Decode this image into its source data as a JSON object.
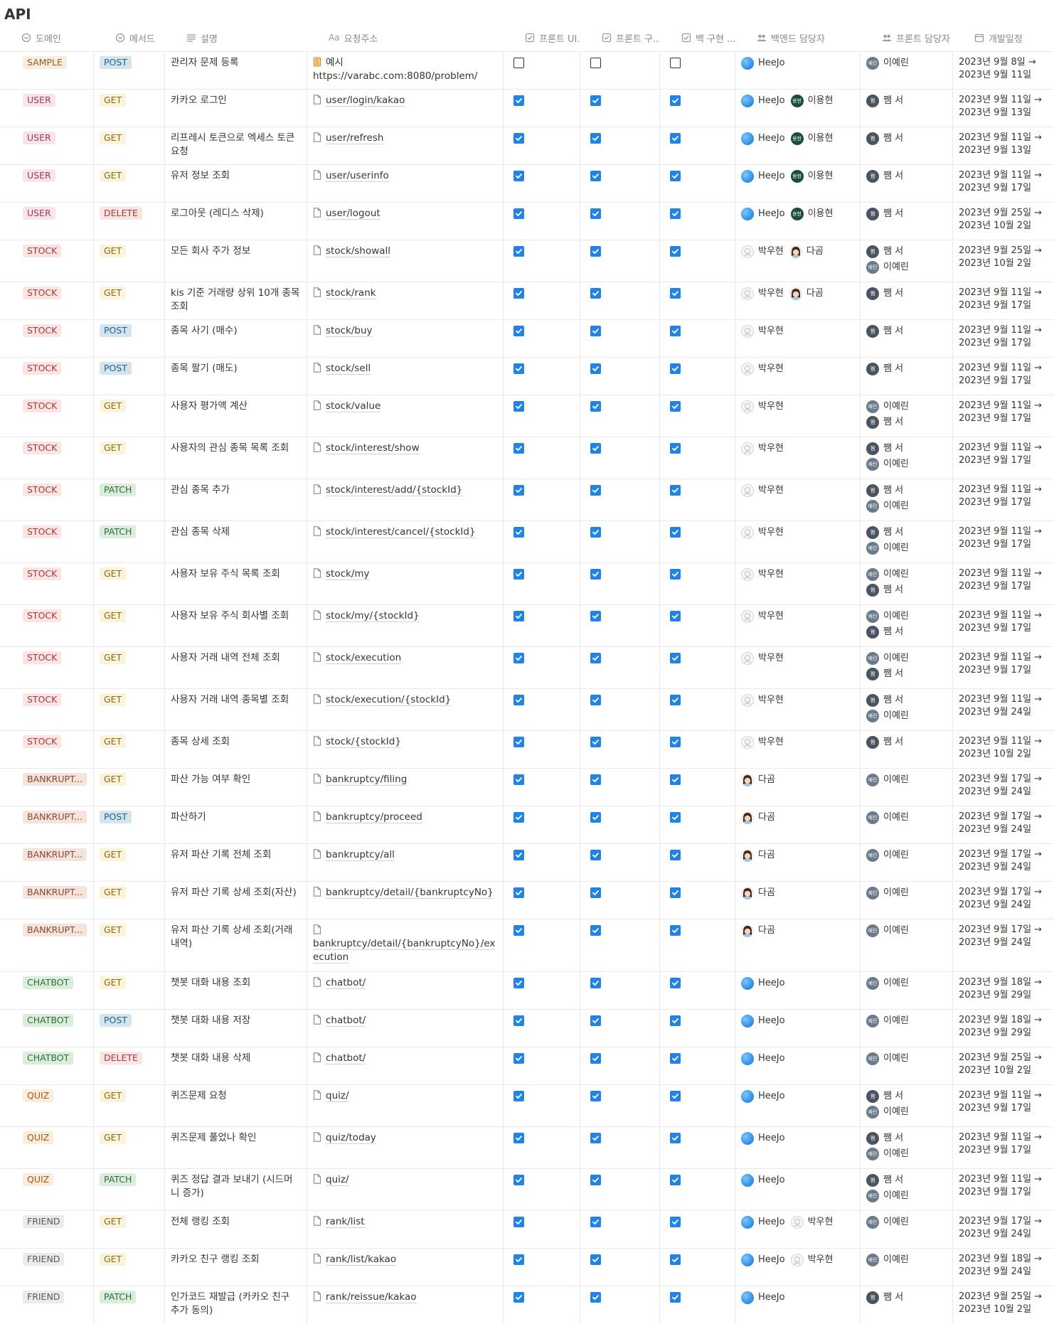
{
  "page": {
    "title": "API"
  },
  "headers": [
    {
      "label": "도메인",
      "icon": "select-icon"
    },
    {
      "label": "메서드",
      "icon": "select-icon"
    },
    {
      "label": "설명",
      "icon": "text-lines-icon"
    },
    {
      "label": "요청주소",
      "icon": "title-aa-icon",
      "prefix": "Aa"
    },
    {
      "label": "프론트 UI...",
      "icon": "checkbox-icon"
    },
    {
      "label": "프론트 구...",
      "icon": "checkbox-icon"
    },
    {
      "label": "백 구현 ...",
      "icon": "checkbox-icon"
    },
    {
      "label": "백엔드 담당자",
      "icon": "people-icon"
    },
    {
      "label": "프론트 담당자",
      "icon": "people-icon"
    },
    {
      "label": "개발일정",
      "icon": "calendar-icon"
    }
  ],
  "people": {
    "HeeJo": {
      "initials": "",
      "color": "#1e88e5",
      "icon": "globe-avatar-icon"
    },
    "이용현": {
      "initials": "용현",
      "color": "#1b4d3e",
      "icon": "initials-avatar-icon"
    },
    "다곰": {
      "initials": "",
      "color": "#f3d9c6",
      "icon": "girl-avatar-icon"
    },
    "박우현": {
      "initials": "",
      "color": "#f1f1ef",
      "icon": "sketch-avatar-icon"
    },
    "이예린": {
      "initials": "예린",
      "color": "#6b7a8a",
      "icon": "initials-avatar-icon"
    },
    "쨈 서": {
      "initials": "쨈",
      "color": "#4a5560",
      "icon": "initials-avatar-icon"
    }
  },
  "tag_colors": {
    "SAMPLE": {
      "bg": "#fbecdd",
      "fg": "#89632a"
    },
    "USER": {
      "bg": "#f9e4ec",
      "fg": "#9b3b5a"
    },
    "STOCK": {
      "bg": "#fbe4e4",
      "fg": "#a73a3a"
    },
    "BANKRUPT...": {
      "bg": "#f4e4dc",
      "fg": "#8a4a33"
    },
    "CHATBOT": {
      "bg": "#dbeddb",
      "fg": "#2f6b3e"
    },
    "QUIZ": {
      "bg": "#fbecdd",
      "fg": "#a15c14"
    },
    "FRIEND": {
      "bg": "#ebebea",
      "fg": "#5a5955"
    },
    "POST": {
      "bg": "#d3e5ef",
      "fg": "#2a5f80"
    },
    "GET": {
      "bg": "#fbf3db",
      "fg": "#8a6a12"
    },
    "DELETE": {
      "bg": "#fbe4e4",
      "fg": "#a73a3a"
    },
    "PATCH": {
      "bg": "#dbeddb",
      "fg": "#2f6b3e"
    }
  },
  "rows": [
    {
      "domain": "SAMPLE",
      "method": "POST",
      "desc": "관리자 문제 등록",
      "url_prefix": "예시",
      "url": "https://varabc.com:8080/problem/",
      "ui": false,
      "fe": false,
      "be": false,
      "backend": [
        "HeeJo"
      ],
      "frontend": [
        "이예린"
      ],
      "date1": "2023년 9월 8일 →",
      "date2": "2023년 9월 11일"
    },
    {
      "domain": "USER",
      "method": "GET",
      "desc": "카카오 로그인",
      "url": "user/login/kakao",
      "ui": true,
      "fe": true,
      "be": true,
      "backend": [
        "HeeJo",
        "이용현"
      ],
      "frontend": [
        "쨈 서"
      ],
      "date1": "2023년 9월 11일 →",
      "date2": "2023년 9월 13일"
    },
    {
      "domain": "USER",
      "method": "GET",
      "desc": "리프레시 토큰으로 엑세스 토큰 요청",
      "url": "user/refresh",
      "ui": true,
      "fe": true,
      "be": true,
      "backend": [
        "HeeJo",
        "이용현"
      ],
      "frontend": [
        "쨈 서"
      ],
      "date1": "2023년 9월 11일 →",
      "date2": "2023년 9월 13일"
    },
    {
      "domain": "USER",
      "method": "GET",
      "desc": "유저 정보 조회",
      "url": "user/userinfo",
      "ui": true,
      "fe": true,
      "be": true,
      "backend": [
        "HeeJo",
        "이용현"
      ],
      "frontend": [
        "쨈 서"
      ],
      "date1": "2023년 9월 11일 →",
      "date2": "2023년 9월 17일"
    },
    {
      "domain": "USER",
      "method": "DELETE",
      "desc": "로그아웃 (레디스 삭제)",
      "url": "user/logout",
      "ui": true,
      "fe": true,
      "be": true,
      "backend": [
        "HeeJo",
        "이용현"
      ],
      "frontend": [
        "쨈 서"
      ],
      "date1": "2023년 9월 25일 →",
      "date2": "2023년 10월 2일"
    },
    {
      "domain": "STOCK",
      "method": "GET",
      "desc": "모든 회사 주가 정보",
      "url": "stock/showall",
      "ui": true,
      "fe": true,
      "be": true,
      "backend": [
        "박우현",
        "다곰"
      ],
      "frontend": [
        "쨈 서",
        "이예린"
      ],
      "date1": "2023년 9월 25일 →",
      "date2": "2023년 10월 2일"
    },
    {
      "domain": "STOCK",
      "method": "GET",
      "desc": "kis 기준 거래량 상위 10개 종목 조회",
      "url": "stock/rank",
      "ui": true,
      "fe": true,
      "be": true,
      "backend": [
        "박우현",
        "다곰"
      ],
      "frontend": [
        "쨈 서"
      ],
      "date1": "2023년 9월 11일 →",
      "date2": "2023년 9월 17일"
    },
    {
      "domain": "STOCK",
      "method": "POST",
      "desc": "종목 사기 (매수)",
      "url": "stock/buy",
      "ui": true,
      "fe": true,
      "be": true,
      "backend": [
        "박우현"
      ],
      "frontend": [
        "쨈 서"
      ],
      "date1": "2023년 9월 11일 →",
      "date2": "2023년 9월 17일"
    },
    {
      "domain": "STOCK",
      "method": "POST",
      "desc": "종목 팔기 (매도)",
      "url": "stock/sell",
      "ui": true,
      "fe": true,
      "be": true,
      "backend": [
        "박우현"
      ],
      "frontend": [
        "쨈 서"
      ],
      "date1": "2023년 9월 11일 →",
      "date2": "2023년 9월 17일"
    },
    {
      "domain": "STOCK",
      "method": "GET",
      "desc": "사용자 평가액 계산",
      "url": "stock/value",
      "ui": true,
      "fe": true,
      "be": true,
      "backend": [
        "박우현"
      ],
      "frontend": [
        "이예린",
        "쨈 서"
      ],
      "date1": "2023년 9월 11일 →",
      "date2": "2023년 9월 17일"
    },
    {
      "domain": "STOCK",
      "method": "GET",
      "desc": "사용자의 관심 종목 목록 조회",
      "url": "stock/interest/show",
      "ui": true,
      "fe": true,
      "be": true,
      "backend": [
        "박우현"
      ],
      "frontend": [
        "쨈 서",
        "이예린"
      ],
      "date1": "2023년 9월 11일 →",
      "date2": "2023년 9월 17일"
    },
    {
      "domain": "STOCK",
      "method": "PATCH",
      "desc": "관심 종목 추가",
      "url": "stock/interest/add/{stockId}",
      "ui": true,
      "fe": true,
      "be": true,
      "backend": [
        "박우현"
      ],
      "frontend": [
        "쨈 서",
        "이예린"
      ],
      "date1": "2023년 9월 11일 →",
      "date2": "2023년 9월 17일"
    },
    {
      "domain": "STOCK",
      "method": "PATCH",
      "desc": "관심 종목 삭제",
      "url": "stock/interest/cancel/{stockId}",
      "ui": true,
      "fe": true,
      "be": true,
      "backend": [
        "박우현"
      ],
      "frontend": [
        "쨈 서",
        "이예린"
      ],
      "date1": "2023년 9월 11일 →",
      "date2": "2023년 9월 17일"
    },
    {
      "domain": "STOCK",
      "method": "GET",
      "desc": "사용자 보유 주식 목록 조회",
      "url": "stock/my",
      "ui": true,
      "fe": true,
      "be": true,
      "backend": [
        "박우현"
      ],
      "frontend": [
        "이예린",
        "쨈 서"
      ],
      "date1": "2023년 9월 11일 →",
      "date2": "2023년 9월 17일"
    },
    {
      "domain": "STOCK",
      "method": "GET",
      "desc": "사용자 보유 주식 회사별 조회",
      "url": "stock/my/{stockId}",
      "ui": true,
      "fe": true,
      "be": true,
      "backend": [
        "박우현"
      ],
      "frontend": [
        "이예린",
        "쨈 서"
      ],
      "date1": "2023년 9월 11일 →",
      "date2": "2023년 9월 17일"
    },
    {
      "domain": "STOCK",
      "method": "GET",
      "desc": "사용자 거래 내역 전체 조회",
      "url": "stock/execution",
      "ui": true,
      "fe": true,
      "be": true,
      "backend": [
        "박우현"
      ],
      "frontend": [
        "이예린",
        "쨈 서"
      ],
      "date1": "2023년 9월 11일 →",
      "date2": "2023년 9월 17일"
    },
    {
      "domain": "STOCK",
      "method": "GET",
      "desc": "사용자 거래 내역 종목별 조회",
      "url": "stock/execution/{stockId}",
      "ui": true,
      "fe": true,
      "be": true,
      "backend": [
        "박우현"
      ],
      "frontend": [
        "쨈 서",
        "이예린"
      ],
      "date1": "2023년 9월 11일 →",
      "date2": "2023년 9월 24일"
    },
    {
      "domain": "STOCK",
      "method": "GET",
      "desc": "종목 상세 조회",
      "url": "stock/{stockId}",
      "ui": true,
      "fe": true,
      "be": true,
      "backend": [
        "박우현"
      ],
      "frontend": [
        "쨈 서"
      ],
      "date1": "2023년 9월 11일 →",
      "date2": "2023년 10월 2일"
    },
    {
      "domain": "BANKRUPT...",
      "method": "GET",
      "desc": "파산 가능 여부 확인",
      "url": "bankruptcy/filing",
      "ui": true,
      "fe": true,
      "be": true,
      "backend": [
        "다곰"
      ],
      "frontend": [
        "이예린"
      ],
      "date1": "2023년 9월 17일 →",
      "date2": "2023년 9월 24일"
    },
    {
      "domain": "BANKRUPT...",
      "method": "POST",
      "desc": "파산하기",
      "url": "bankruptcy/proceed",
      "ui": true,
      "fe": true,
      "be": true,
      "backend": [
        "다곰"
      ],
      "frontend": [
        "이예린"
      ],
      "date1": "2023년 9월 17일 →",
      "date2": "2023년 9월 24일"
    },
    {
      "domain": "BANKRUPT...",
      "method": "GET",
      "desc": "유저 파산 기록 전체 조회",
      "url": "bankruptcy/all",
      "ui": true,
      "fe": true,
      "be": true,
      "backend": [
        "다곰"
      ],
      "frontend": [
        "이예린"
      ],
      "date1": "2023년 9월 17일 →",
      "date2": "2023년 9월 24일"
    },
    {
      "domain": "BANKRUPT...",
      "method": "GET",
      "desc": "유저 파산 기록 상세 조회(자산)",
      "url": "bankruptcy/detail/{bankruptcyNo}",
      "ui": true,
      "fe": true,
      "be": true,
      "backend": [
        "다곰"
      ],
      "frontend": [
        "이예린"
      ],
      "date1": "2023년 9월 17일 →",
      "date2": "2023년 9월 24일"
    },
    {
      "domain": "BANKRUPT...",
      "method": "GET",
      "desc": "유저 파산 기록 상세 조회(거래내역)",
      "url": "bankruptcy/detail/{bankruptcyNo}/execution",
      "url_block": true,
      "ui": true,
      "fe": true,
      "be": true,
      "backend": [
        "다곰"
      ],
      "frontend": [
        "이예린"
      ],
      "date1": "2023년 9월 17일 →",
      "date2": "2023년 9월 24일"
    },
    {
      "domain": "CHATBOT",
      "method": "GET",
      "desc": "챗봇 대화 내용 조회",
      "url": "chatbot/",
      "ui": true,
      "fe": true,
      "be": true,
      "backend": [
        "HeeJo"
      ],
      "frontend": [
        "이예린"
      ],
      "date1": "2023년 9월 18일 →",
      "date2": "2023년 9월 29일"
    },
    {
      "domain": "CHATBOT",
      "method": "POST",
      "desc": "챗봇 대화 내용 저장",
      "url": "chatbot/",
      "ui": true,
      "fe": true,
      "be": true,
      "backend": [
        "HeeJo"
      ],
      "frontend": [
        "이예린"
      ],
      "date1": "2023년 9월 18일 →",
      "date2": "2023년 9월 29일"
    },
    {
      "domain": "CHATBOT",
      "method": "DELETE",
      "desc": "챗봇 대화 내용 삭제",
      "url": "chatbot/",
      "ui": true,
      "fe": true,
      "be": true,
      "backend": [
        "HeeJo"
      ],
      "frontend": [
        "이예린"
      ],
      "date1": "2023년 9월 25일 →",
      "date2": "2023년 10월 2일"
    },
    {
      "domain": "QUIZ",
      "method": "GET",
      "desc": "퀴즈문제 요청",
      "url": "quiz/",
      "ui": true,
      "fe": true,
      "be": true,
      "backend": [
        "HeeJo"
      ],
      "frontend": [
        "쨈 서",
        "이예린"
      ],
      "date1": "2023년 9월 11일 →",
      "date2": "2023년 9월 17일"
    },
    {
      "domain": "QUIZ",
      "method": "GET",
      "desc": "퀴즈문제 풀었나 확인",
      "url": "quiz/today",
      "ui": true,
      "fe": true,
      "be": true,
      "backend": [
        "HeeJo"
      ],
      "frontend": [
        "쨈 서",
        "이예린"
      ],
      "date1": "2023년 9월 11일 →",
      "date2": "2023년 9월 17일"
    },
    {
      "domain": "QUIZ",
      "method": "PATCH",
      "desc": "퀴즈 정답 결과 보내기 (시드머니 증가)",
      "url": "quiz/",
      "ui": true,
      "fe": true,
      "be": true,
      "backend": [
        "HeeJo"
      ],
      "frontend": [
        "쨈 서",
        "이예린"
      ],
      "date1": "2023년 9월 11일 →",
      "date2": "2023년 9월 17일"
    },
    {
      "domain": "FRIEND",
      "method": "GET",
      "desc": "전체 랭킹 조회",
      "url": "rank/list",
      "ui": true,
      "fe": true,
      "be": true,
      "backend": [
        "HeeJo",
        "박우현"
      ],
      "frontend": [
        "이예린"
      ],
      "date1": "2023년 9월 17일 →",
      "date2": "2023년 9월 24일"
    },
    {
      "domain": "FRIEND",
      "method": "GET",
      "desc": "카카오 친구 랭킹 조회",
      "url": "rank/list/kakao",
      "ui": true,
      "fe": true,
      "be": true,
      "backend": [
        "HeeJo",
        "박우현"
      ],
      "frontend": [
        "이예린"
      ],
      "date1": "2023년 9월 18일 →",
      "date2": "2023년 9월 24일"
    },
    {
      "domain": "FRIEND",
      "method": "PATCH",
      "desc": "인가코드 재발급 (카카오 친구 추가 동의)",
      "url": "rank/reissue/kakao",
      "ui": true,
      "fe": true,
      "be": true,
      "backend": [
        "HeeJo"
      ],
      "frontend": [
        "쨈 서"
      ],
      "date1": "2023년 9월 25일 →",
      "date2": "2023년 10월 2일"
    }
  ]
}
